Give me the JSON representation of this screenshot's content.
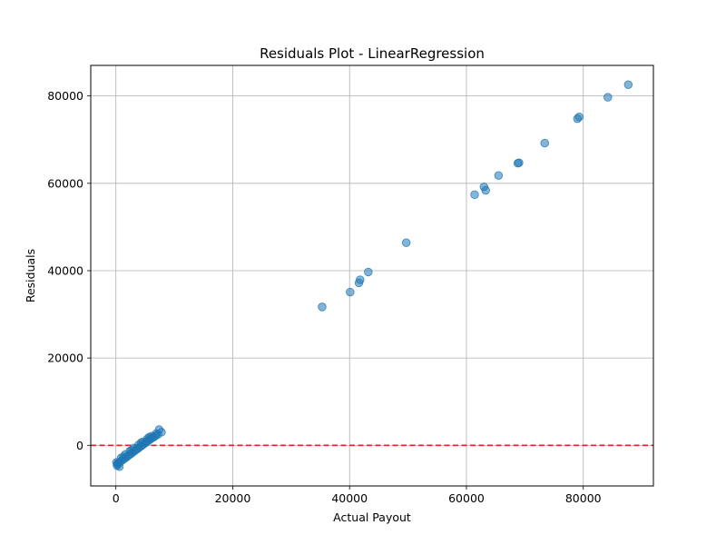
{
  "chart_data": {
    "type": "scatter",
    "title": "Residuals Plot - LinearRegression",
    "xlabel": "Actual Payout",
    "ylabel": "Residuals",
    "xlim": [
      -4300,
      92000
    ],
    "ylim": [
      -9300,
      87000
    ],
    "xticks": [
      0,
      20000,
      40000,
      60000,
      80000
    ],
    "yticks": [
      0,
      20000,
      40000,
      60000,
      80000
    ],
    "xtick_labels": [
      "0",
      "20000",
      "40000",
      "60000",
      "80000"
    ],
    "ytick_labels": [
      "0",
      "20000",
      "40000",
      "60000",
      "80000"
    ],
    "grid": true,
    "legend": false,
    "reference_line": {
      "y": 0,
      "style": "dashed",
      "color": "#d62728"
    },
    "marker_color": "#1f77b4",
    "marker_alpha": 0.55,
    "series": [
      {
        "points": [
          {
            "x": 35300,
            "y": 31700
          },
          {
            "x": 40100,
            "y": 35100
          },
          {
            "x": 41600,
            "y": 37200
          },
          {
            "x": 41800,
            "y": 37900
          },
          {
            "x": 43200,
            "y": 39700
          },
          {
            "x": 49700,
            "y": 46400
          },
          {
            "x": 61400,
            "y": 57400
          },
          {
            "x": 63000,
            "y": 59200
          },
          {
            "x": 63300,
            "y": 58400
          },
          {
            "x": 65500,
            "y": 61800
          },
          {
            "x": 68800,
            "y": 64600
          },
          {
            "x": 69000,
            "y": 64700
          },
          {
            "x": 73400,
            "y": 69200
          },
          {
            "x": 79000,
            "y": 74800
          },
          {
            "x": 79300,
            "y": 75200
          },
          {
            "x": 84200,
            "y": 79700
          },
          {
            "x": 87700,
            "y": 82600
          },
          {
            "x": 7800,
            "y": 3000
          },
          {
            "x": 7400,
            "y": 3600
          },
          {
            "x": 7200,
            "y": 2500
          },
          {
            "x": 6800,
            "y": 2200
          },
          {
            "x": 6500,
            "y": 1900
          },
          {
            "x": 6200,
            "y": 1700
          },
          {
            "x": 5900,
            "y": 1400
          },
          {
            "x": 5600,
            "y": 1100
          },
          {
            "x": 5300,
            "y": 800
          },
          {
            "x": 5000,
            "y": 500
          },
          {
            "x": 4700,
            "y": 200
          },
          {
            "x": 4400,
            "y": -100
          },
          {
            "x": 4100,
            "y": -400
          },
          {
            "x": 3800,
            "y": -700
          },
          {
            "x": 3500,
            "y": -1000
          },
          {
            "x": 3200,
            "y": -1300
          },
          {
            "x": 2900,
            "y": -1600
          },
          {
            "x": 2600,
            "y": -1900
          },
          {
            "x": 2300,
            "y": -2200
          },
          {
            "x": 2000,
            "y": -2500
          },
          {
            "x": 1700,
            "y": -2800
          },
          {
            "x": 1400,
            "y": -3100
          },
          {
            "x": 1100,
            "y": -3400
          },
          {
            "x": 800,
            "y": -3700
          },
          {
            "x": 500,
            "y": -4000
          },
          {
            "x": 300,
            "y": -4300
          },
          {
            "x": 200,
            "y": -4600
          },
          {
            "x": 600,
            "y": -4900
          },
          {
            "x": 100,
            "y": -3900
          },
          {
            "x": 350,
            "y": -4100
          },
          {
            "x": 6900,
            "y": 2700
          },
          {
            "x": 6100,
            "y": 2100
          },
          {
            "x": 5400,
            "y": 1500
          },
          {
            "x": 4600,
            "y": 800
          },
          {
            "x": 3900,
            "y": 100
          },
          {
            "x": 3100,
            "y": -600
          },
          {
            "x": 2400,
            "y": -1300
          },
          {
            "x": 1600,
            "y": -2100
          },
          {
            "x": 900,
            "y": -2900
          },
          {
            "x": 4300,
            "y": 600
          },
          {
            "x": 5700,
            "y": 1900
          },
          {
            "x": 2700,
            "y": -1100
          },
          {
            "x": 1300,
            "y": -2600
          }
        ]
      }
    ]
  }
}
